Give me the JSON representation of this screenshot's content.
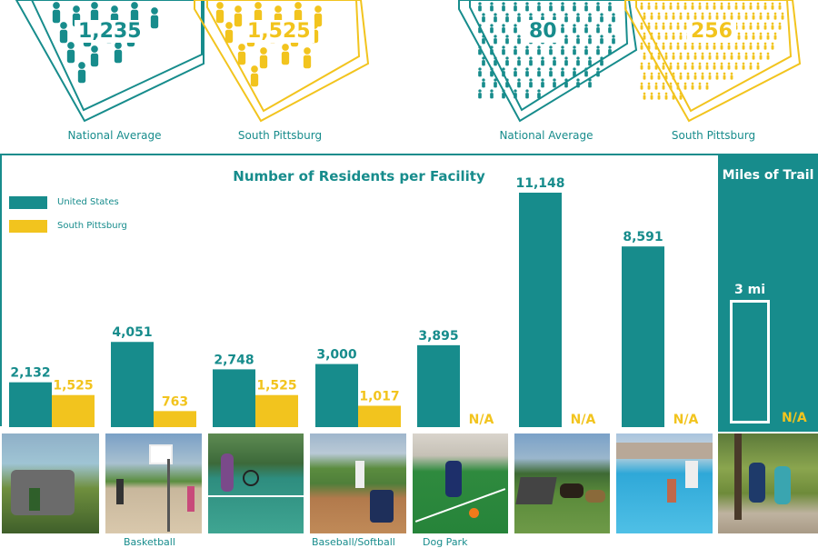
{
  "stats_top": {
    "left_group": {
      "items": [
        {
          "value": "1,235",
          "caption": "National Average"
        },
        {
          "value": "1,525",
          "caption": "South Pittsburg"
        }
      ]
    },
    "right_group": {
      "items": [
        {
          "value": "80",
          "caption": "National Average"
        },
        {
          "value": "256",
          "caption": "South Pittsburg"
        }
      ]
    }
  },
  "colors": {
    "teal": "#178c8c",
    "yellow": "#f2c41e"
  },
  "chart_data": {
    "type": "bar",
    "title": "Number of Residents per Facility",
    "series": [
      {
        "name": "United States",
        "color": "#178c8c",
        "values": [
          2132,
          4051,
          2748,
          3000,
          3895,
          11148,
          8591
        ]
      },
      {
        "name": "South Pittsburg",
        "color": "#f2c41e",
        "values": [
          1525,
          763,
          1525,
          1017,
          null,
          null,
          null
        ]
      }
    ],
    "data_labels_us": [
      "2,132",
      "4,051",
      "2,748",
      "3,000",
      "3,895",
      "11,148",
      "8,591"
    ],
    "data_labels_sp": [
      "1,525",
      "763",
      "1,525",
      "1,017",
      "N/A",
      "N/A",
      "N/A"
    ],
    "ylim": [
      0,
      11500
    ],
    "legend": "top-left"
  },
  "trail": {
    "title": "Miles of Trail",
    "value_label": "3 mi",
    "na_label": "N/A"
  },
  "photo_labels": [
    "Basketball",
    "Baseball/Softball",
    "Dog Park"
  ]
}
